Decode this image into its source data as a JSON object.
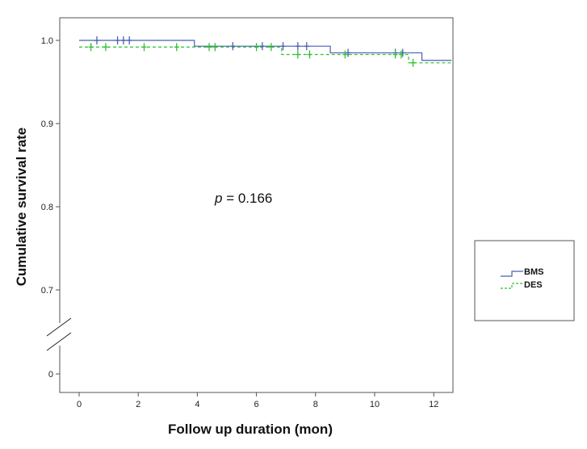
{
  "chart_data": {
    "type": "line",
    "subtype": "kaplan-meier step",
    "xlabel": "Follow up duration (mon)",
    "ylabel": "Cumulative survival rate",
    "xlim": [
      -0.7,
      12.6
    ],
    "x_ticks": [
      0,
      2,
      4,
      6,
      8,
      10,
      12
    ],
    "x_tick_labels": [
      "0",
      "2",
      "4",
      "6",
      "8",
      "10",
      "12"
    ],
    "y_axis_break": true,
    "y_ticks": [
      0,
      0.7,
      0.8,
      0.9,
      1.0
    ],
    "y_tick_labels": [
      "0",
      "0.7",
      "0.8",
      "0.9",
      "1.0"
    ],
    "annotation": {
      "prefix": "p",
      "text": " = 0.166"
    },
    "legend": {
      "placement": "right",
      "entries": [
        "BMS",
        "DES"
      ]
    },
    "series": [
      {
        "name": "BMS",
        "color": "#4a5fb5",
        "style": "solid",
        "steps": [
          [
            0,
            1.0
          ],
          [
            3.9,
            0.993
          ],
          [
            8.5,
            0.985
          ],
          [
            11.6,
            0.976
          ],
          [
            12.6,
            0.976
          ]
        ],
        "censored": [
          [
            0.6,
            1.0
          ],
          [
            1.3,
            1.0
          ],
          [
            1.5,
            1.0
          ],
          [
            1.7,
            1.0
          ],
          [
            5.2,
            0.993
          ],
          [
            6.2,
            0.993
          ],
          [
            6.9,
            0.993
          ],
          [
            7.4,
            0.993
          ],
          [
            7.7,
            0.993
          ],
          [
            9.1,
            0.985
          ],
          [
            10.7,
            0.985
          ],
          [
            10.95,
            0.985
          ]
        ]
      },
      {
        "name": "DES",
        "color": "#2fc02f",
        "style": "dashed",
        "steps": [
          [
            0,
            0.992
          ],
          [
            6.85,
            0.983
          ],
          [
            11.15,
            0.973
          ],
          [
            12.6,
            0.973
          ]
        ],
        "censored": [
          [
            0.4,
            0.992
          ],
          [
            0.9,
            0.992
          ],
          [
            2.2,
            0.992
          ],
          [
            3.3,
            0.992
          ],
          [
            4.4,
            0.992
          ],
          [
            4.6,
            0.992
          ],
          [
            6.0,
            0.992
          ],
          [
            6.5,
            0.992
          ],
          [
            7.4,
            0.983
          ],
          [
            7.8,
            0.983
          ],
          [
            9.0,
            0.983
          ],
          [
            10.7,
            0.983
          ],
          [
            10.9,
            0.983
          ],
          [
            11.3,
            0.973
          ]
        ]
      }
    ]
  }
}
